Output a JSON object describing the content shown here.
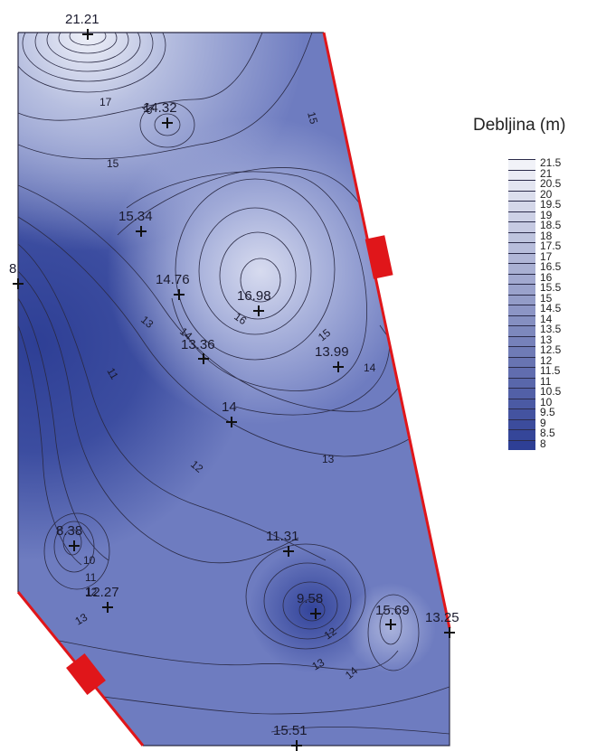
{
  "legend": {
    "title": "Debljina (m)",
    "levels": [
      "21.5",
      "21",
      "20.5",
      "20",
      "19.5",
      "19",
      "18.5",
      "18",
      "17.5",
      "17",
      "16.5",
      "16",
      "15.5",
      "15",
      "14.5",
      "14",
      "13.5",
      "13",
      "12.5",
      "12",
      "11.5",
      "11",
      "10.5",
      "10",
      "9.5",
      "9",
      "8.5",
      "8"
    ]
  },
  "colors": {
    "high": "#f1f2f8",
    "low": "#2e3f95",
    "contour": "#2a2a44",
    "boundary": "#e0161a"
  },
  "points": [
    {
      "id": "p1",
      "label": "21.21"
    },
    {
      "id": "p2",
      "label": "14.32"
    },
    {
      "id": "p3",
      "label": "15.34"
    },
    {
      "id": "p4",
      "label": "8"
    },
    {
      "id": "p5",
      "label": "14.76"
    },
    {
      "id": "p6",
      "label": "16.98"
    },
    {
      "id": "p7",
      "label": "13.36"
    },
    {
      "id": "p8",
      "label": "13.99"
    },
    {
      "id": "p9",
      "label": "14"
    },
    {
      "id": "p10",
      "label": "8.38"
    },
    {
      "id": "p11",
      "label": "11.31"
    },
    {
      "id": "p12",
      "label": "12.27"
    },
    {
      "id": "p13",
      "label": "9.58"
    },
    {
      "id": "p14",
      "label": "15.69"
    },
    {
      "id": "p15",
      "label": "13.25"
    },
    {
      "id": "p16",
      "label": "15.51"
    }
  ],
  "contour_labels": [
    "17",
    "15",
    "15",
    "13",
    "14",
    "16",
    "11",
    "15",
    "14",
    "12",
    "13",
    "10",
    "11",
    "12",
    "13",
    "12",
    "13",
    "14",
    "16"
  ]
}
